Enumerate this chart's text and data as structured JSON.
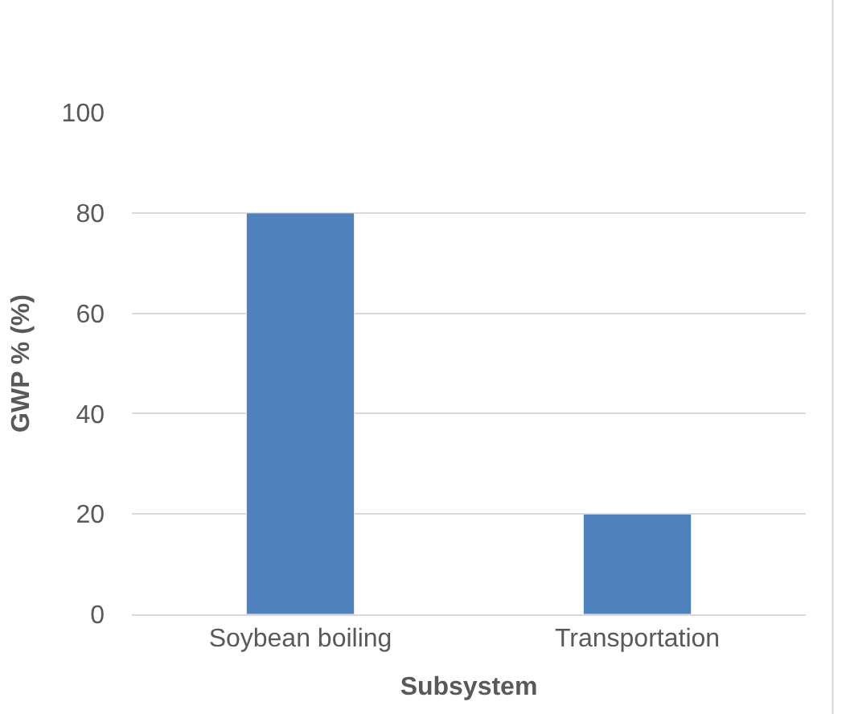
{
  "chart_data": {
    "type": "bar",
    "xlabel": "Subsystem",
    "ylabel": "GWP % (%)",
    "categories": [
      "Soybean boiling",
      "Transportation"
    ],
    "values": [
      80,
      20
    ],
    "color": "#4f81bd",
    "ylim": [
      0,
      100
    ],
    "yticks": [
      0,
      20,
      40,
      60,
      80,
      100
    ],
    "grid": "y"
  }
}
